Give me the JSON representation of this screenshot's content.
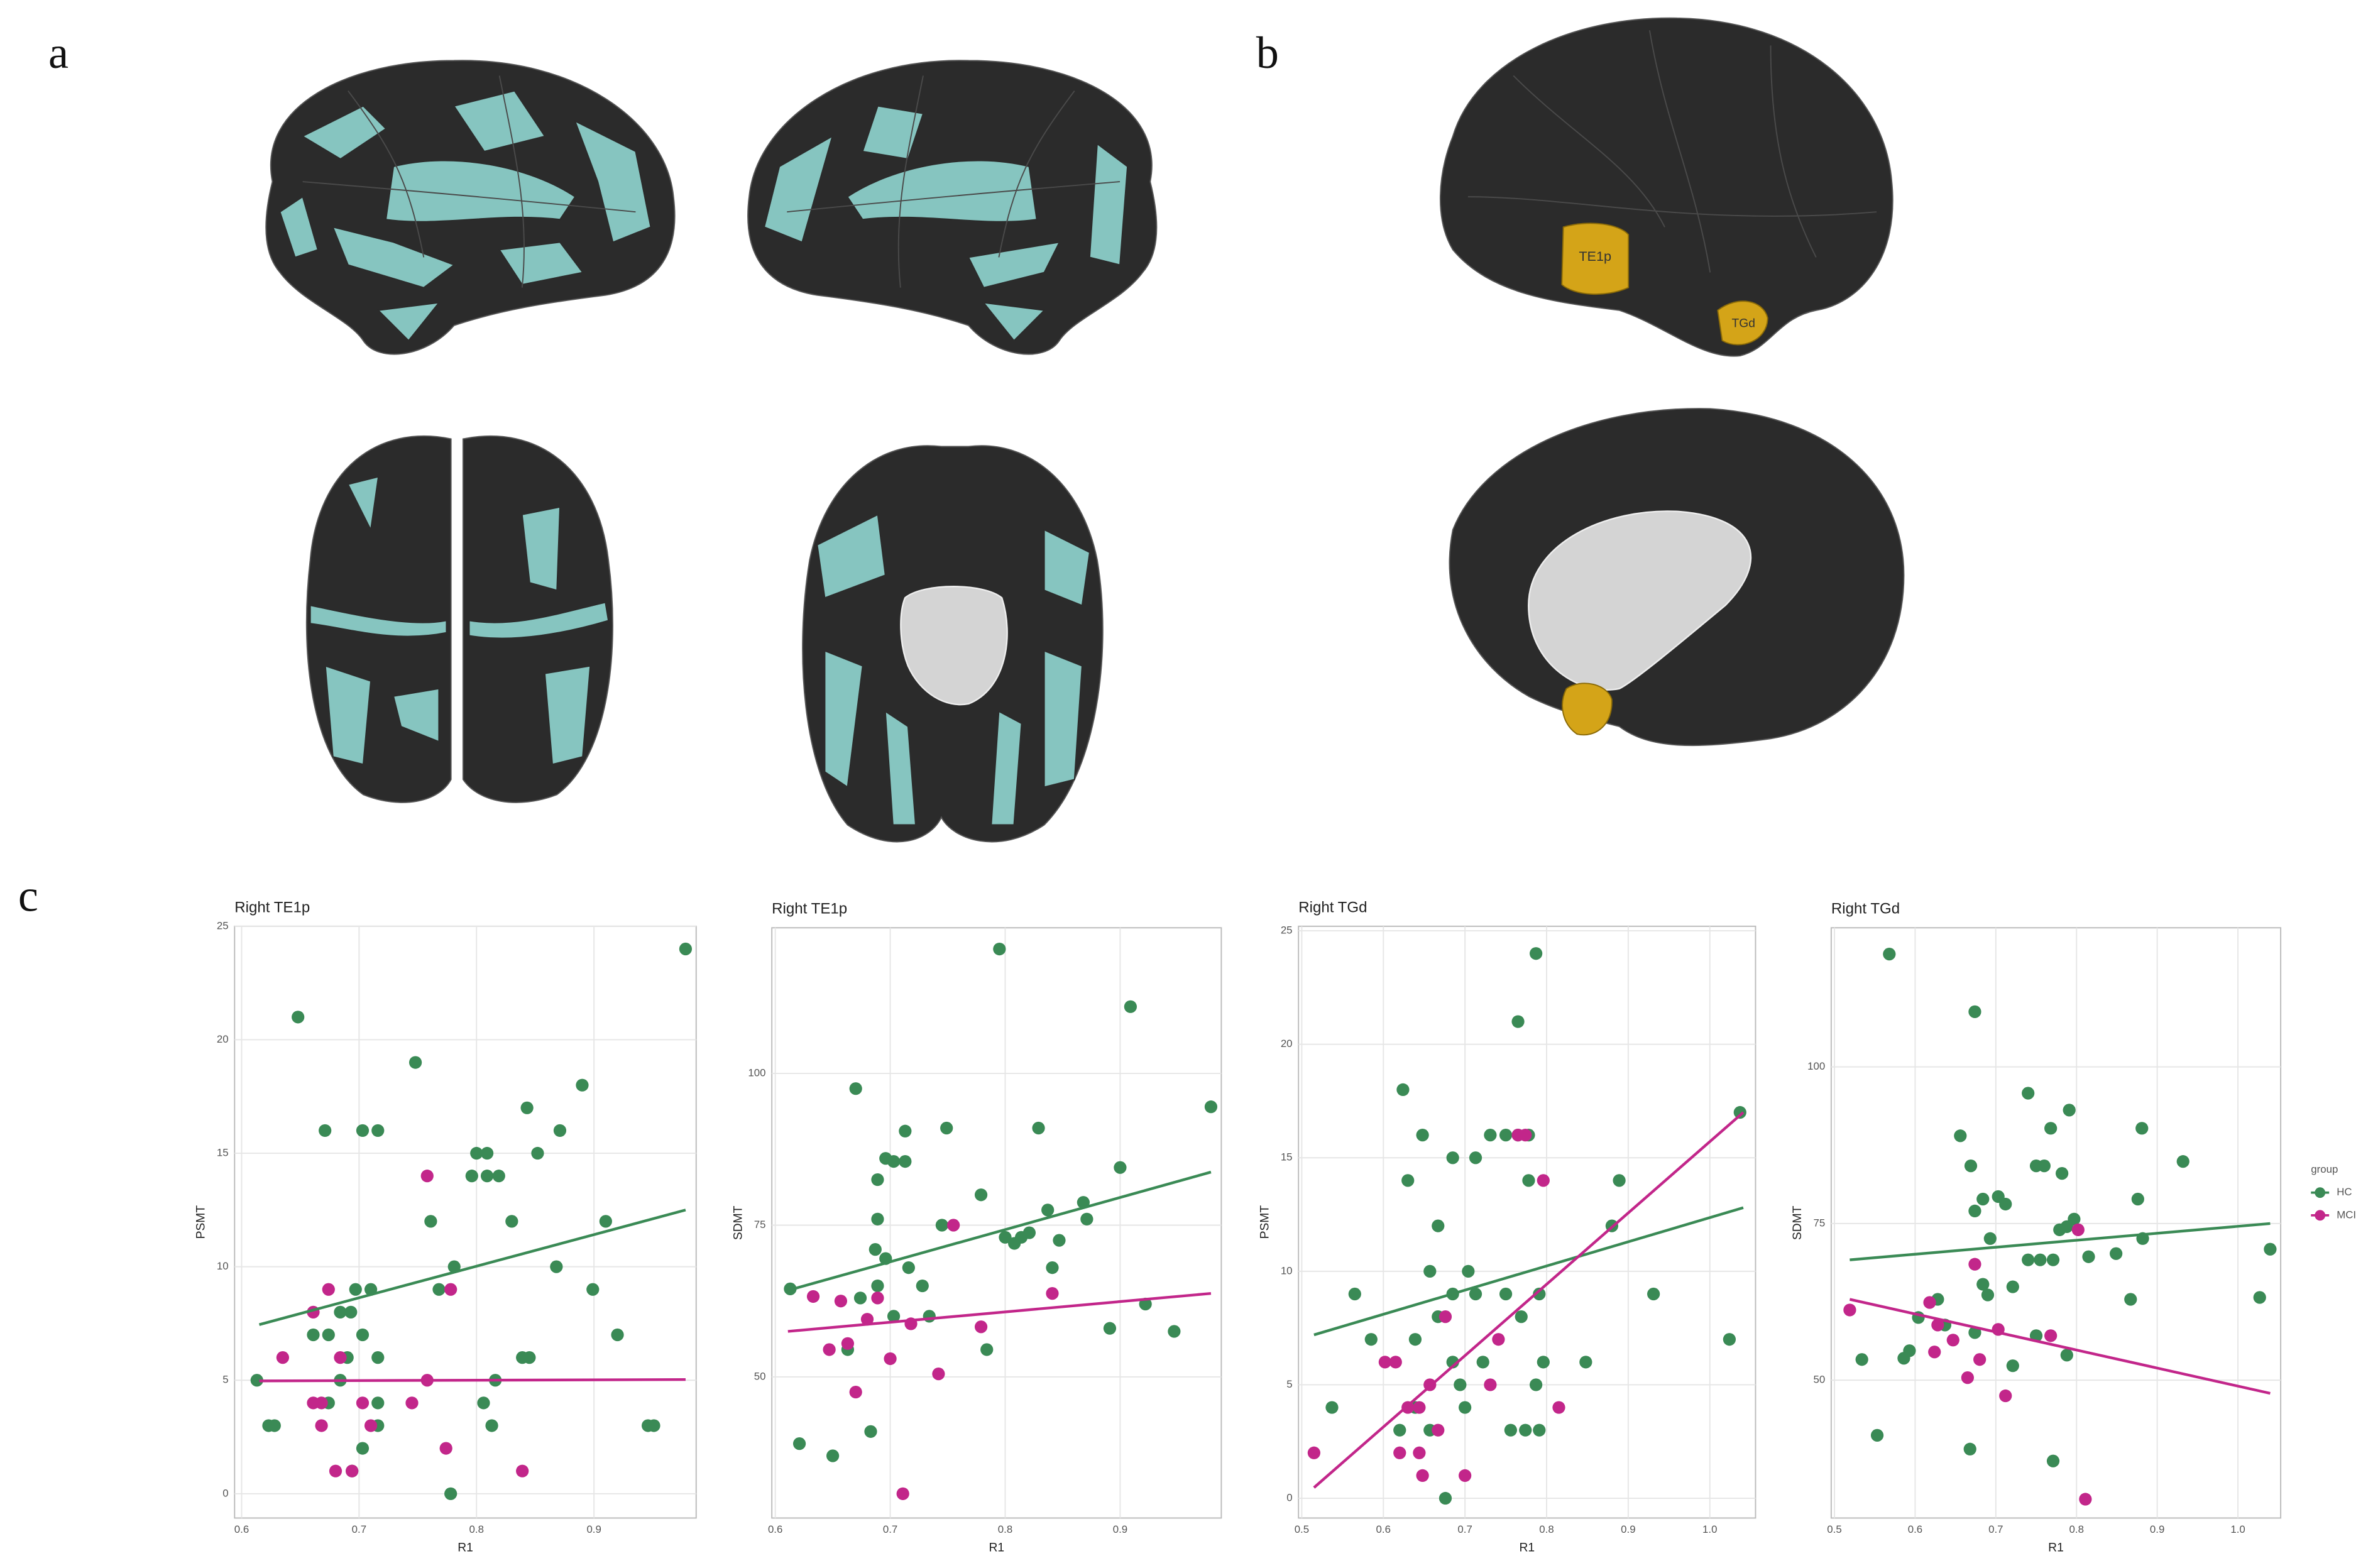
{
  "panel_labels": [
    "a",
    "b",
    "c"
  ],
  "brain_labels": [
    "TE1p",
    "TGd"
  ],
  "chart_data": [
    {
      "type": "scatter",
      "title": "Right TE1p",
      "x_label": "R1",
      "y_label": "PSMT",
      "xlim": [
        0.594,
        0.987
      ],
      "ylim": [
        -1.07,
        25
      ],
      "xticks": [
        0.6,
        0.7,
        0.8,
        0.9
      ],
      "yticks": [
        0,
        5,
        10,
        15,
        20,
        25
      ],
      "grid": true,
      "series": [
        {
          "color": "#3a8a55",
          "x": [
            0.613,
            0.623,
            0.628,
            0.648,
            0.671,
            0.703,
            0.716,
            0.748,
            0.761,
            0.781,
            0.796,
            0.809,
            0.819,
            0.8,
            0.809,
            0.83,
            0.843,
            0.852,
            0.871,
            0.89,
            0.91,
            0.899,
            0.92,
            0.868,
            0.946,
            0.951,
            0.978,
            0.661,
            0.674,
            0.684,
            0.697,
            0.71,
            0.693,
            0.703,
            0.69,
            0.684,
            0.716,
            0.716,
            0.716,
            0.703,
            0.694,
            0.768,
            0.778,
            0.813,
            0.839,
            0.845,
            0.816,
            0.806,
            0.674
          ],
          "values": [
            5,
            3,
            3,
            21,
            16,
            16,
            16,
            19,
            12,
            10,
            14,
            14,
            14,
            15,
            15,
            12,
            17,
            15,
            16,
            18,
            12,
            9,
            7,
            10,
            3,
            3,
            24,
            7,
            7,
            8,
            9,
            9,
            8,
            7,
            6,
            5,
            6,
            4,
            3,
            2,
            1,
            9,
            0,
            3,
            6,
            6,
            5,
            4,
            4
          ],
          "trend_x": [
            0.615,
            0.978
          ],
          "trend_values": [
            7.45,
            12.5
          ]
        },
        {
          "color": "#c2268a",
          "x": [
            0.635,
            0.661,
            0.668,
            0.668,
            0.68,
            0.694,
            0.674,
            0.661,
            0.684,
            0.703,
            0.71,
            0.745,
            0.758,
            0.758,
            0.778,
            0.774,
            0.839
          ],
          "values": [
            6,
            4,
            4,
            3,
            1,
            1,
            9,
            8,
            6,
            4,
            3,
            4,
            5,
            14,
            9,
            2,
            1
          ],
          "trend_x": [
            0.615,
            0.978
          ],
          "trend_values": [
            4.97,
            5.03
          ]
        }
      ]
    },
    {
      "type": "scatter",
      "title": "Right TE1p",
      "x_label": "R1",
      "y_label": "SDMT",
      "xlim": [
        0.597,
        0.988
      ],
      "ylim": [
        26.75,
        124
      ],
      "xticks": [
        0.6,
        0.7,
        0.8,
        0.9
      ],
      "yticks": [
        50,
        75,
        100
      ],
      "grid": true,
      "series": [
        {
          "color": "#3a8a55",
          "x": [
            0.795,
            0.909,
            0.979,
            0.613,
            0.67,
            0.621,
            0.65,
            0.683,
            0.663,
            0.689,
            0.689,
            0.696,
            0.703,
            0.713,
            0.713,
            0.749,
            0.687,
            0.696,
            0.716,
            0.728,
            0.703,
            0.734,
            0.745,
            0.779,
            0.784,
            0.8,
            0.808,
            0.814,
            0.821,
            0.829,
            0.837,
            0.841,
            0.847,
            0.868,
            0.871,
            0.9,
            0.891,
            0.922,
            0.947,
            0.674,
            0.689
          ],
          "values": [
            120.5,
            111,
            94.5,
            64.5,
            97.5,
            39,
            37,
            41,
            54.5,
            82.5,
            76,
            86,
            85.5,
            85.5,
            90.5,
            91,
            71,
            69.5,
            68,
            65,
            60,
            60,
            75,
            80,
            54.5,
            73,
            72,
            73,
            73.75,
            91,
            77.5,
            68,
            72.5,
            78.75,
            76,
            84.5,
            58,
            62,
            57.5,
            63,
            65
          ],
          "trend_x": [
            0.611,
            0.979
          ],
          "trend_values": [
            64.25,
            83.75
          ]
        },
        {
          "color": "#c2268a",
          "x": [
            0.633,
            0.647,
            0.663,
            0.657,
            0.67,
            0.68,
            0.689,
            0.7,
            0.711,
            0.742,
            0.755,
            0.779,
            0.841,
            0.718
          ],
          "values": [
            63.25,
            54.5,
            55.5,
            62.5,
            47.5,
            59.5,
            63,
            53,
            30.75,
            50.5,
            75,
            58.25,
            63.75,
            58.75
          ],
          "trend_x": [
            0.611,
            0.979
          ],
          "trend_values": [
            57.5,
            63.75
          ]
        }
      ]
    },
    {
      "type": "scatter",
      "title": "Right TGd",
      "x_label": "R1",
      "y_label": "PSMT",
      "xlim": [
        0.496,
        1.056
      ],
      "ylim": [
        -0.87,
        25.2
      ],
      "xticks": [
        0.5,
        0.6,
        0.7,
        0.8,
        0.9,
        {
          "value": 1,
          "label": "1.0"
        }
      ],
      "yticks": [
        0,
        5,
        10,
        15,
        20,
        25
      ],
      "grid": true,
      "series": [
        {
          "color": "#3a8a55",
          "x": [
            0.787,
            0.765,
            0.624,
            0.648,
            0.63,
            0.685,
            0.713,
            0.731,
            0.75,
            0.765,
            0.778,
            0.778,
            0.889,
            0.88,
            0.667,
            0.657,
            0.565,
            0.685,
            0.704,
            0.713,
            0.75,
            0.791,
            0.931,
            0.769,
            0.537,
            0.585,
            0.639,
            0.667,
            0.685,
            0.694,
            0.639,
            0.657,
            0.62,
            0.676,
            0.7,
            0.722,
            0.756,
            0.774,
            0.791,
            0.796,
            0.848,
            1.024,
            1.037,
            0.787
          ],
          "values": [
            24,
            21,
            18,
            16,
            14,
            15,
            15,
            16,
            16,
            16,
            16,
            14,
            14,
            12,
            12,
            10,
            9,
            9,
            10,
            9,
            9,
            9,
            9,
            8,
            4,
            7,
            7,
            8,
            6,
            5,
            4,
            3,
            3,
            0,
            4,
            6,
            3,
            3,
            3,
            6,
            6,
            7,
            17,
            5
          ],
          "trend_x": [
            0.515,
            1.041
          ],
          "trend_values": [
            7.2,
            12.8
          ]
        },
        {
          "color": "#c2268a",
          "x": [
            0.515,
            0.62,
            0.602,
            0.615,
            0.63,
            0.644,
            0.657,
            0.648,
            0.676,
            0.7,
            0.731,
            0.741,
            0.765,
            0.774,
            0.796,
            0.815,
            0.644,
            0.667
          ],
          "values": [
            2,
            2,
            6,
            6,
            4,
            4,
            5,
            1,
            8,
            1,
            5,
            7,
            16,
            16,
            14,
            4,
            2,
            3
          ],
          "trend_x": [
            0.515,
            1.041
          ],
          "trend_values": [
            0.47,
            17
          ]
        }
      ]
    },
    {
      "type": "scatter",
      "title": "Right TGd",
      "x_label": "R1",
      "y_label": "SDMT",
      "xlim": [
        0.496,
        1.053
      ],
      "ylim": [
        28,
        122.2
      ],
      "xticks": [
        0.5,
        0.6,
        0.7,
        0.8,
        0.9,
        {
          "value": 1,
          "label": "1.0"
        }
      ],
      "yticks": [
        50,
        75,
        100
      ],
      "grid": true,
      "legend": "right",
      "legend_title": "group",
      "series": [
        {
          "name": "HC",
          "color": "#3a8a55",
          "x": [
            0.568,
            0.674,
            0.74,
            0.768,
            0.791,
            0.881,
            0.932,
            0.656,
            0.669,
            0.674,
            0.684,
            0.703,
            0.712,
            0.693,
            0.75,
            0.76,
            0.782,
            0.797,
            0.788,
            0.779,
            0.74,
            0.755,
            0.771,
            0.815,
            0.849,
            0.882,
            0.876,
            0.867,
            0.628,
            0.684,
            0.69,
            0.721,
            0.637,
            0.674,
            0.534,
            0.586,
            0.593,
            0.604,
            0.553,
            0.668,
            0.721,
            0.75,
            0.771,
            0.788,
            1.027,
            1.04
          ],
          "values": [
            118,
            108.8,
            95.8,
            90.2,
            93.1,
            90.2,
            84.9,
            89,
            84.2,
            77,
            78.9,
            79.3,
            78.1,
            72.6,
            84.2,
            84.2,
            83,
            75.7,
            74.5,
            74,
            69.2,
            69.2,
            69.2,
            69.7,
            70.2,
            72.6,
            78.9,
            62.9,
            62.9,
            65.3,
            63.6,
            64.9,
            58.8,
            57.6,
            53.3,
            53.5,
            54.7,
            60,
            41.2,
            39,
            52.3,
            57.1,
            37.1,
            54,
            63.2,
            70.9
          ],
          "trend_x": [
            0.519,
            1.04
          ],
          "trend_values": [
            69.2,
            75
          ]
        },
        {
          "name": "MCI",
          "color": "#c2268a",
          "x": [
            0.519,
            0.618,
            0.628,
            0.647,
            0.624,
            0.665,
            0.674,
            0.68,
            0.703,
            0.712,
            0.768,
            0.802,
            0.811
          ],
          "values": [
            61.2,
            62.4,
            58.8,
            56.4,
            54.5,
            50.4,
            68.5,
            53.3,
            58.1,
            47.5,
            57.1,
            74,
            31
          ],
          "trend_x": [
            0.519,
            1.04
          ],
          "trend_values": [
            62.9,
            47.9
          ]
        }
      ]
    }
  ]
}
